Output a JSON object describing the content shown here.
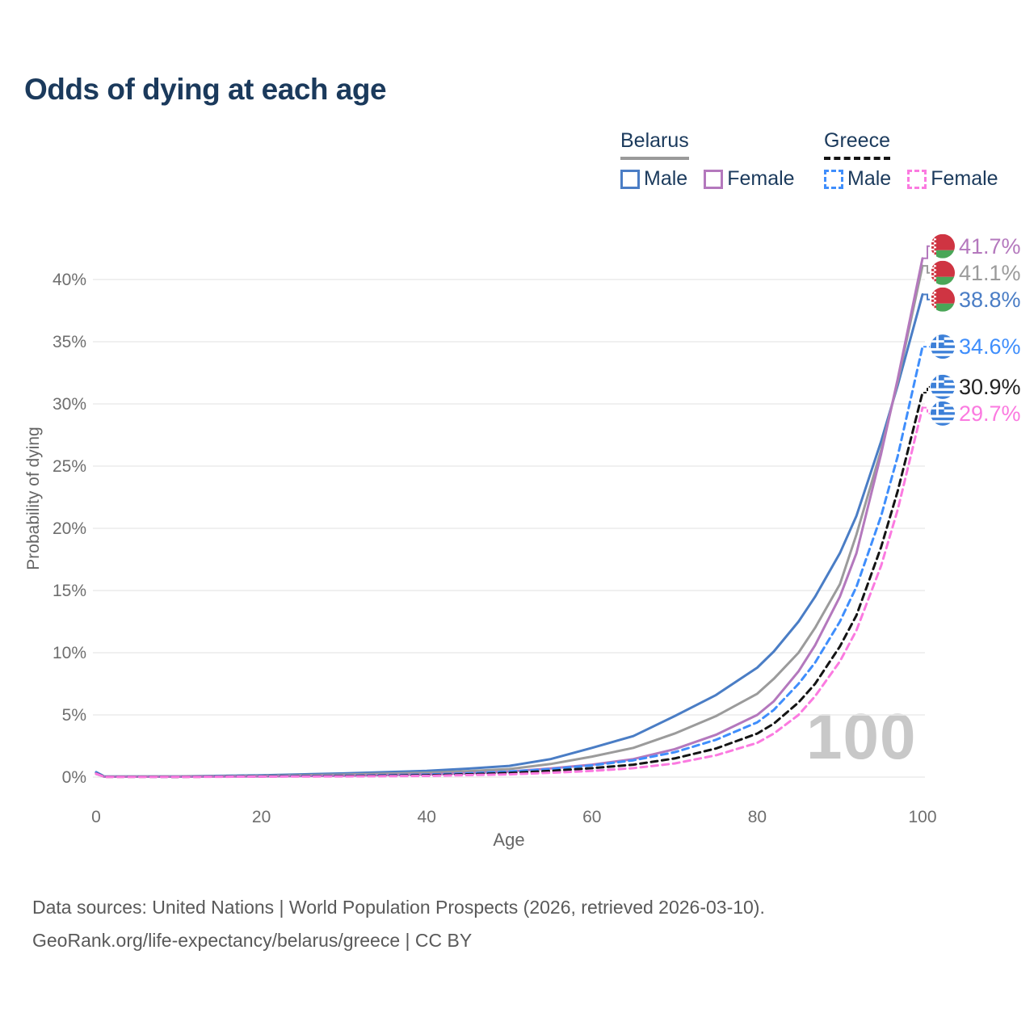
{
  "title": "Odds of dying at each age",
  "legend": {
    "groups": [
      {
        "name": "Belarus",
        "line_style": "solid",
        "line_color": "#9a9a9a",
        "items": [
          {
            "label": "Male",
            "color": "#4a7dc5",
            "dashed": false
          },
          {
            "label": "Female",
            "color": "#b478bd",
            "dashed": false
          }
        ]
      },
      {
        "name": "Greece",
        "line_style": "dashed",
        "line_color": "#141414",
        "items": [
          {
            "label": "Male",
            "color": "#3f8efc",
            "dashed": true
          },
          {
            "label": "Female",
            "color": "#fb7ae0",
            "dashed": true
          }
        ]
      }
    ]
  },
  "chart_data": {
    "type": "line",
    "title": "Odds of dying at each age",
    "xlabel": "Age",
    "ylabel": "Probability of dying",
    "xlim": [
      0,
      100
    ],
    "ylim_percent": [
      0,
      43.5
    ],
    "x_ticks": [
      0,
      20,
      40,
      60,
      80,
      100
    ],
    "y_ticks_percent": [
      0,
      5,
      10,
      15,
      20,
      25,
      30,
      35,
      40
    ],
    "grid": "horizontal-only",
    "legend_position": "top-right",
    "watermark": "100",
    "x": [
      0,
      1,
      10,
      20,
      30,
      40,
      45,
      50,
      55,
      60,
      65,
      70,
      75,
      80,
      82,
      85,
      87,
      90,
      92,
      95,
      97,
      100
    ],
    "series": [
      {
        "name": "Belarus Male",
        "country": "Belarus",
        "sex": "Male",
        "color": "#4a7dc5",
        "dashed": false,
        "flag": "belarus",
        "end_label": "38.8%",
        "values": [
          0.4,
          0.05,
          0.06,
          0.15,
          0.3,
          0.5,
          0.68,
          0.9,
          1.45,
          2.35,
          3.3,
          4.9,
          6.6,
          8.8,
          10.1,
          12.5,
          14.5,
          18.0,
          21.0,
          27.0,
          31.5,
          38.8
        ]
      },
      {
        "name": "Belarus Both sexes",
        "country": "Belarus",
        "sex": "Both",
        "color": "#9b9b9b",
        "dashed": false,
        "flag": "belarus",
        "end_label": "41.1%",
        "values": [
          0.3,
          0.04,
          0.045,
          0.1,
          0.2,
          0.35,
          0.48,
          0.65,
          1.05,
          1.65,
          2.35,
          3.5,
          4.9,
          6.7,
          7.9,
          10.0,
          12.0,
          15.5,
          19.5,
          26.3,
          31.8,
          41.1
        ]
      },
      {
        "name": "Belarus Female",
        "country": "Belarus",
        "sex": "Female",
        "color": "#b478bd",
        "dashed": false,
        "flag": "belarus",
        "end_label": "41.7%",
        "values": [
          0.25,
          0.03,
          0.03,
          0.06,
          0.12,
          0.22,
          0.32,
          0.45,
          0.7,
          1.0,
          1.45,
          2.25,
          3.4,
          5.0,
          6.1,
          8.5,
          10.6,
          14.5,
          18.0,
          26.0,
          32.0,
          41.7
        ]
      },
      {
        "name": "Greece Male",
        "country": "Greece",
        "sex": "Male",
        "color": "#3f8efc",
        "dashed": true,
        "flag": "greece",
        "end_label": "34.6%",
        "values": [
          0.35,
          0.03,
          0.025,
          0.07,
          0.12,
          0.2,
          0.3,
          0.45,
          0.65,
          0.95,
          1.35,
          2.0,
          3.0,
          4.4,
          5.4,
          7.5,
          9.2,
          12.5,
          15.3,
          21.0,
          25.8,
          34.6
        ]
      },
      {
        "name": "Greece Both sexes",
        "country": "Greece",
        "sex": "Both",
        "color": "#141414",
        "dashed": true,
        "flag": "greece",
        "end_label": "30.9%",
        "values": [
          0.3,
          0.025,
          0.02,
          0.055,
          0.09,
          0.15,
          0.23,
          0.33,
          0.5,
          0.72,
          1.0,
          1.5,
          2.3,
          3.5,
          4.3,
          6.0,
          7.5,
          10.5,
          13.0,
          18.5,
          23.0,
          30.9
        ]
      },
      {
        "name": "Greece Female",
        "country": "Greece",
        "sex": "Female",
        "color": "#fb7ae0",
        "dashed": true,
        "flag": "greece",
        "end_label": "29.7%",
        "values": [
          0.28,
          0.02,
          0.015,
          0.04,
          0.06,
          0.1,
          0.16,
          0.22,
          0.35,
          0.5,
          0.72,
          1.1,
          1.75,
          2.75,
          3.5,
          5.0,
          6.5,
          9.3,
          11.8,
          17.0,
          21.5,
          29.7
        ]
      }
    ]
  },
  "footer": {
    "line1": "Data sources: United Nations | World Population Prospects (2026, retrieved 2026-03-10).",
    "line2": "GeoRank.org/life-expectancy/belarus/greece | CC BY"
  }
}
